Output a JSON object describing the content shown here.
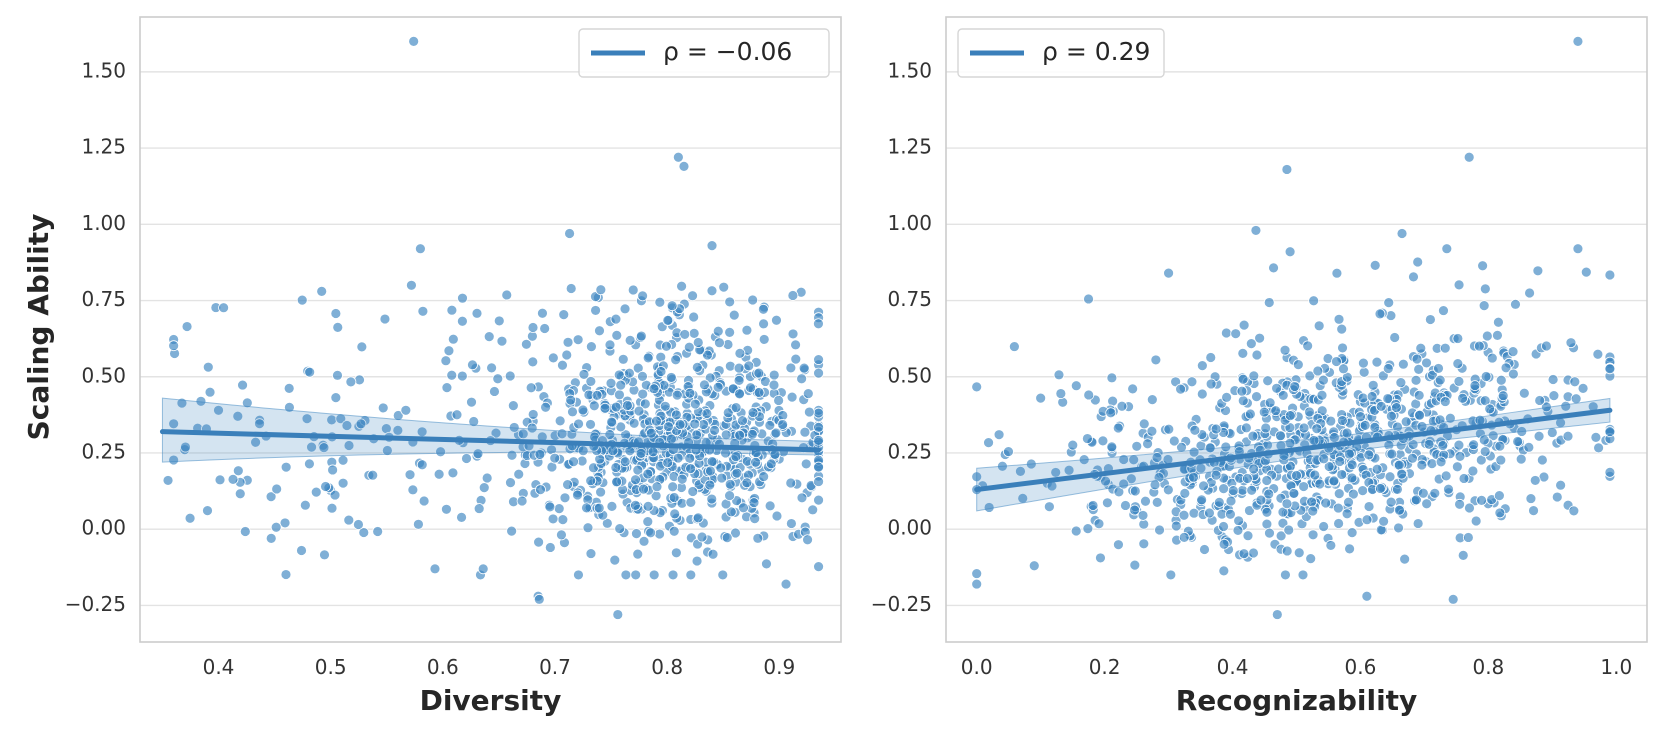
{
  "chart_data": [
    {
      "type": "scatter",
      "title": "",
      "xlabel": "Diversity",
      "ylabel": "Scaling Ability",
      "xlim": [
        0.33,
        0.955
      ],
      "ylim": [
        -0.37,
        1.68
      ],
      "xticks": [
        "0.4",
        "0.5",
        "0.6",
        "0.7",
        "0.8",
        "0.9"
      ],
      "yticks": [
        "−0.25",
        "0.00",
        "0.25",
        "0.50",
        "0.75",
        "1.00",
        "1.25",
        "1.50"
      ],
      "legend": {
        "label": "ρ = −0.06",
        "placement": "top-right"
      },
      "regression": {
        "x": [
          0.35,
          0.935
        ],
        "y": [
          0.32,
          0.26
        ],
        "ci_low": [
          0.22,
          0.23
        ],
        "ci_high": [
          0.43,
          0.31
        ]
      },
      "color": "#3a84c0",
      "highlighted_points": [
        {
          "x": 0.574,
          "y": 1.6
        },
        {
          "x": 0.81,
          "y": 1.22
        },
        {
          "x": 0.815,
          "y": 1.19
        },
        {
          "x": 0.713,
          "y": 0.97
        },
        {
          "x": 0.58,
          "y": 0.92
        },
        {
          "x": 0.84,
          "y": 0.93
        },
        {
          "x": 0.355,
          "y": 0.16
        },
        {
          "x": 0.4,
          "y": 0.39
        },
        {
          "x": 0.447,
          "y": -0.03
        },
        {
          "x": 0.474,
          "y": -0.07
        },
        {
          "x": 0.492,
          "y": 0.78
        },
        {
          "x": 0.572,
          "y": 0.8
        },
        {
          "x": 0.685,
          "y": -0.22
        },
        {
          "x": 0.686,
          "y": -0.23
        },
        {
          "x": 0.756,
          "y": -0.28
        },
        {
          "x": 0.906,
          "y": -0.18
        },
        {
          "x": 0.636,
          "y": -0.13
        },
        {
          "x": 0.593,
          "y": -0.13
        }
      ],
      "n_points": 950
    },
    {
      "type": "scatter",
      "title": "",
      "xlabel": "Recognizability",
      "ylabel": "",
      "xlim": [
        -0.048,
        1.048
      ],
      "ylim": [
        -0.37,
        1.68
      ],
      "xticks": [
        "0.0",
        "0.2",
        "0.4",
        "0.6",
        "0.8",
        "1.0"
      ],
      "yticks": [
        "−0.25",
        "0.00",
        "0.25",
        "0.50",
        "0.75",
        "1.00",
        "1.25",
        "1.50"
      ],
      "legend": {
        "label": "ρ = 0.29",
        "placement": "top-left"
      },
      "regression": {
        "x": [
          0.0,
          0.99
        ],
        "y": [
          0.13,
          0.39
        ],
        "ci_low": [
          0.06,
          0.34
        ],
        "ci_high": [
          0.2,
          0.44
        ]
      },
      "color": "#3a84c0",
      "highlighted_points": [
        {
          "x": 0.94,
          "y": 1.6
        },
        {
          "x": 0.77,
          "y": 1.22
        },
        {
          "x": 0.485,
          "y": 1.18
        },
        {
          "x": 0.3,
          "y": 0.84
        },
        {
          "x": 0.0,
          "y": -0.18
        },
        {
          "x": 0.47,
          "y": -0.28
        },
        {
          "x": 0.745,
          "y": -0.23
        },
        {
          "x": 0.61,
          "y": -0.22
        },
        {
          "x": 0.665,
          "y": 0.97
        },
        {
          "x": 0.94,
          "y": 0.92
        },
        {
          "x": 0.49,
          "y": 0.91
        },
        {
          "x": 0.735,
          "y": 0.92
        },
        {
          "x": 0.09,
          "y": -0.12
        },
        {
          "x": 0.1,
          "y": 0.43
        },
        {
          "x": 0.035,
          "y": 0.31
        }
      ],
      "n_points": 950
    }
  ]
}
